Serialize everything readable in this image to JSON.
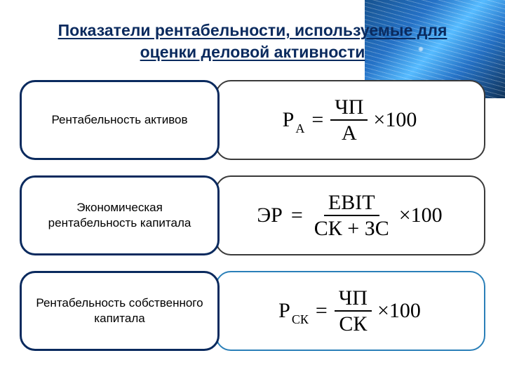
{
  "title_line1": "Показатели рентабельности, используемые для",
  "title_line2": "оценки деловой активности",
  "title_color": "#0a2a5e",
  "label_border_color": "#0a2a5e",
  "formula_border_colors": [
    "#3a3a3a",
    "#3a3a3a",
    "#2a7fb8"
  ],
  "rows": [
    {
      "label": "Рентабельность активов",
      "lhs_main": "Р",
      "lhs_sub": "А",
      "numerator": "ЧП",
      "denominator": "А",
      "tail": "×100"
    },
    {
      "label": "Экономическая рентабельность капитала",
      "lhs_main": "ЭР",
      "lhs_sub": "",
      "numerator": "EBIT",
      "denominator": "СК + ЗС",
      "tail": "×100"
    },
    {
      "label": "Рентабельность собственного капитала",
      "lhs_main": "Р",
      "lhs_sub": "СК",
      "numerator": "ЧП",
      "denominator": "СК",
      "tail": "×100"
    }
  ]
}
